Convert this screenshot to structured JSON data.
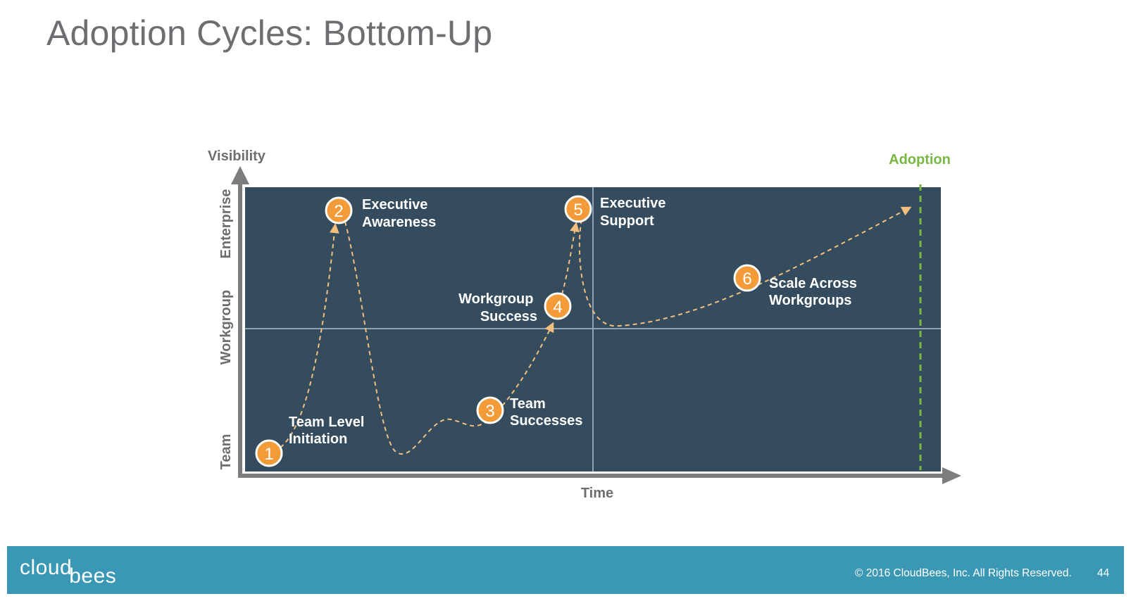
{
  "slide": {
    "title": "Adoption Cycles: Bottom-Up"
  },
  "diagram": {
    "y_axis_label": "Visibility",
    "x_axis_label": "Time",
    "adoption_label": "Adoption",
    "levels": [
      "Enterprise",
      "Workgroup",
      "Team"
    ],
    "milestones": [
      {
        "number": "1",
        "lines": [
          "Team Level",
          "Initiation"
        ]
      },
      {
        "number": "2",
        "lines": [
          "Executive",
          "Awareness"
        ]
      },
      {
        "number": "3",
        "lines": [
          "Team",
          "Successes"
        ]
      },
      {
        "number": "4",
        "lines": [
          "Workgroup",
          "Success"
        ]
      },
      {
        "number": "5",
        "lines": [
          "Executive",
          "Support"
        ]
      },
      {
        "number": "6",
        "lines": [
          "Scale Across",
          "Workgroups"
        ]
      }
    ],
    "colors": {
      "panel": "#344c5e",
      "axis": "#7d7d7d",
      "milestone": "#f29b38",
      "path": "#f4bf7e",
      "adoption": "#78b743"
    }
  },
  "footer": {
    "logo_part1": "cloud",
    "logo_part2": "bees",
    "copyright": "© 2016 CloudBees, Inc. All Rights Reserved.",
    "page_number": "44"
  }
}
